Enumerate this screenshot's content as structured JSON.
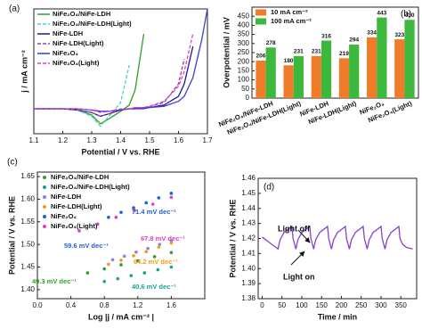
{
  "chart_data": [
    {
      "type": "line",
      "panel_label": "(a)",
      "xlabel": "Potential / V vs. RHE",
      "ylabel": "j / mA cm⁻²",
      "xlim": [
        1.1,
        1.7
      ],
      "xticks": [
        1.1,
        1.2,
        1.3,
        1.4,
        1.5,
        1.6,
        1.7
      ],
      "ylim": [
        -20,
        80
      ],
      "legend": "upper left",
      "x": [
        1.1,
        1.2,
        1.25,
        1.3,
        1.33,
        1.36,
        1.4,
        1.43,
        1.45,
        1.48,
        1.5,
        1.55,
        1.6,
        1.62,
        1.65,
        1.68,
        1.7
      ],
      "series": [
        {
          "name": "NiFe₂O₄/NiFe-LDH",
          "color": "#2ca02c",
          "linestyle": "solid",
          "values": [
            0,
            0,
            -1,
            -5,
            -12,
            -8,
            -2,
            3,
            15,
            60,
            null,
            null,
            null,
            null,
            null,
            null,
            null
          ]
        },
        {
          "name": "NiFe₂O₄/NiFe-LDH(Light)",
          "color": "#4fd1c5",
          "linestyle": "dashed",
          "values": [
            0,
            0,
            -1,
            -6,
            -14,
            -6,
            5,
            35,
            null,
            null,
            null,
            null,
            null,
            null,
            null,
            null,
            null
          ]
        },
        {
          "name": "NiFe-LDH",
          "color": "#1a1a8c",
          "linestyle": "solid",
          "values": [
            0,
            0,
            -1,
            -3,
            -6,
            -4,
            -1,
            0,
            0,
            1,
            1,
            3,
            10,
            20,
            50,
            null,
            null
          ]
        },
        {
          "name": "NiFe-LDH(Light)",
          "color": "#8e44ad",
          "linestyle": "dashed",
          "values": [
            0,
            0,
            -1,
            -3,
            -6,
            -4,
            -1,
            0,
            1,
            1,
            2,
            5,
            20,
            40,
            null,
            null,
            null
          ]
        },
        {
          "name": "NiFe₂O₄",
          "color": "#3b3bd6",
          "linestyle": "solid",
          "values": [
            0,
            0,
            0,
            -1,
            -2,
            -2,
            -1,
            0,
            0,
            0,
            1,
            2,
            6,
            10,
            25,
            55,
            80
          ]
        },
        {
          "name": "NiFe₂O₄(Light)",
          "color": "#e040c0",
          "linestyle": "dashed",
          "values": [
            0,
            0,
            0,
            -1,
            -3,
            -2,
            0,
            0,
            1,
            1,
            2,
            6,
            18,
            30,
            60,
            null,
            null
          ]
        }
      ]
    },
    {
      "type": "bar",
      "panel_label": "(b)",
      "ylabel": "Overpotential / mV",
      "ylim": [
        0,
        500
      ],
      "yticks": [
        0,
        50,
        100,
        150,
        200,
        250,
        300,
        350,
        400,
        450
      ],
      "legend": "upper left",
      "categories": [
        "NiFe₂O₄/NiFe-LDH",
        "NiFe₂O₄/NiFe-LDH(Light)",
        "NiFe-LDH",
        "NiFe-LDH(Light)",
        "NiFe₂O₄",
        "NiFe₂O₄(Light)"
      ],
      "series": [
        {
          "name": "10 mA cm⁻²",
          "color": "#f07c2a",
          "values": [
            206,
            180,
            231,
            219,
            334,
            323
          ]
        },
        {
          "name": "100 mA cm⁻²",
          "color": "#3cb83c",
          "values": [
            278,
            231,
            316,
            294,
            443,
            430
          ]
        }
      ]
    },
    {
      "type": "scatter",
      "panel_label": "(c)",
      "xlabel": "Log |j / mA cm⁻² |",
      "ylabel": "Potential / V vs. RHE",
      "xlim": [
        0,
        2.0
      ],
      "xticks": [
        {
          "value": 0,
          "label": "0.0"
        },
        0.4,
        0.8,
        1.2,
        1.6
      ],
      "ylim": [
        1.38,
        1.66
      ],
      "yticks": [
        {
          "value": 1.4,
          "label": "1.40"
        },
        1.45,
        {
          "value": 1.5,
          "label": "1.50"
        },
        1.55,
        {
          "value": 1.6,
          "label": "1.60"
        },
        1.65
      ],
      "legend": "upper left",
      "series": [
        {
          "name": "NiFe₂O₄/NiFe-LDH",
          "color": "#2ca02c",
          "x": [
            0.6,
            0.8,
            1.0,
            1.2,
            1.4,
            1.6
          ],
          "values": [
            1.437,
            1.446,
            1.455,
            1.464,
            1.473,
            1.482
          ]
        },
        {
          "name": "NiFe₂O₄/NiFe-LDH(Light)",
          "color": "#17a589",
          "x": [
            0.8,
            0.96,
            1.12,
            1.28,
            1.44,
            1.6
          ],
          "values": [
            1.418,
            1.424,
            1.431,
            1.437,
            1.444,
            1.45
          ]
        },
        {
          "name": "NiFe-LDH",
          "color": "#8e7cf0",
          "x": [
            0.9,
            1.04,
            1.18,
            1.32,
            1.46,
            1.6
          ],
          "values": [
            1.466,
            1.474,
            1.483,
            1.491,
            1.5,
            1.508
          ]
        },
        {
          "name": "NiFe-LDH(Light)",
          "color": "#f39c12",
          "x": [
            0.85,
            1.0,
            1.15,
            1.3,
            1.45,
            1.6
          ],
          "values": [
            1.456,
            1.465,
            1.475,
            1.484,
            1.494,
            1.503
          ]
        },
        {
          "name": "NiFe₂O₄",
          "color": "#1f5fd6",
          "x": [
            0.85,
            1.0,
            1.15,
            1.3,
            1.45,
            1.6
          ],
          "values": [
            1.56,
            1.571,
            1.581,
            1.592,
            1.603,
            1.613
          ]
        },
        {
          "name": "NiFe₂O₄(Light)",
          "color": "#e040c0",
          "x": [
            0.5,
            0.72,
            0.94,
            1.16,
            1.38,
            1.6
          ],
          "values": [
            1.53,
            1.545,
            1.56,
            1.575,
            1.589,
            1.604
          ]
        }
      ],
      "annotations": [
        {
          "text": "71.4 mV dec⁻¹",
          "color": "#1f5fd6"
        },
        {
          "text": "67.8 mV dec⁻¹",
          "color": "#e040c0"
        },
        {
          "text": "59.6 mV dec⁻¹",
          "color": "#1f5fd6"
        },
        {
          "text": "64.2 mV dec⁻¹",
          "color": "#f39c12"
        },
        {
          "text": "49.3 mV dec⁻¹",
          "color": "#2ca02c"
        },
        {
          "text": "40.6 mV dec⁻¹",
          "color": "#17a589"
        }
      ]
    },
    {
      "type": "line",
      "panel_label": "(d)",
      "xlabel": "Time / min",
      "ylabel": "Potential / V vs. RHE",
      "xlim": [
        -10,
        390
      ],
      "xticks": [
        0,
        50,
        100,
        150,
        200,
        250,
        300,
        350
      ],
      "ylim": [
        1.38,
        1.46
      ],
      "yticks": [
        1.38,
        1.39,
        {
          "value": 1.4,
          "label": "1.40"
        },
        1.41,
        1.42,
        1.43,
        1.44,
        1.45,
        1.46
      ],
      "x": [
        0,
        20,
        40,
        45,
        55,
        75,
        78,
        85,
        90,
        100,
        120,
        123,
        130,
        135,
        145,
        165,
        168,
        175,
        180,
        190,
        210,
        213,
        220,
        225,
        235,
        255,
        258,
        265,
        270,
        280,
        300,
        303,
        310,
        315,
        325,
        345,
        348,
        355,
        365,
        380
      ],
      "series": [
        {
          "color": "#8a3fd1",
          "linestyle": "solid",
          "values": [
            1.421,
            1.417,
            1.413,
            1.419,
            1.424,
            1.428,
            1.42,
            1.413,
            1.419,
            1.424,
            1.428,
            1.42,
            1.413,
            1.419,
            1.424,
            1.428,
            1.42,
            1.413,
            1.419,
            1.424,
            1.428,
            1.42,
            1.413,
            1.419,
            1.424,
            1.428,
            1.42,
            1.413,
            1.419,
            1.424,
            1.428,
            1.42,
            1.413,
            1.419,
            1.424,
            1.428,
            1.42,
            1.416,
            1.414,
            1.413
          ]
        }
      ],
      "annotations": [
        {
          "text": "Light off"
        },
        {
          "text": "Light on"
        }
      ]
    }
  ]
}
